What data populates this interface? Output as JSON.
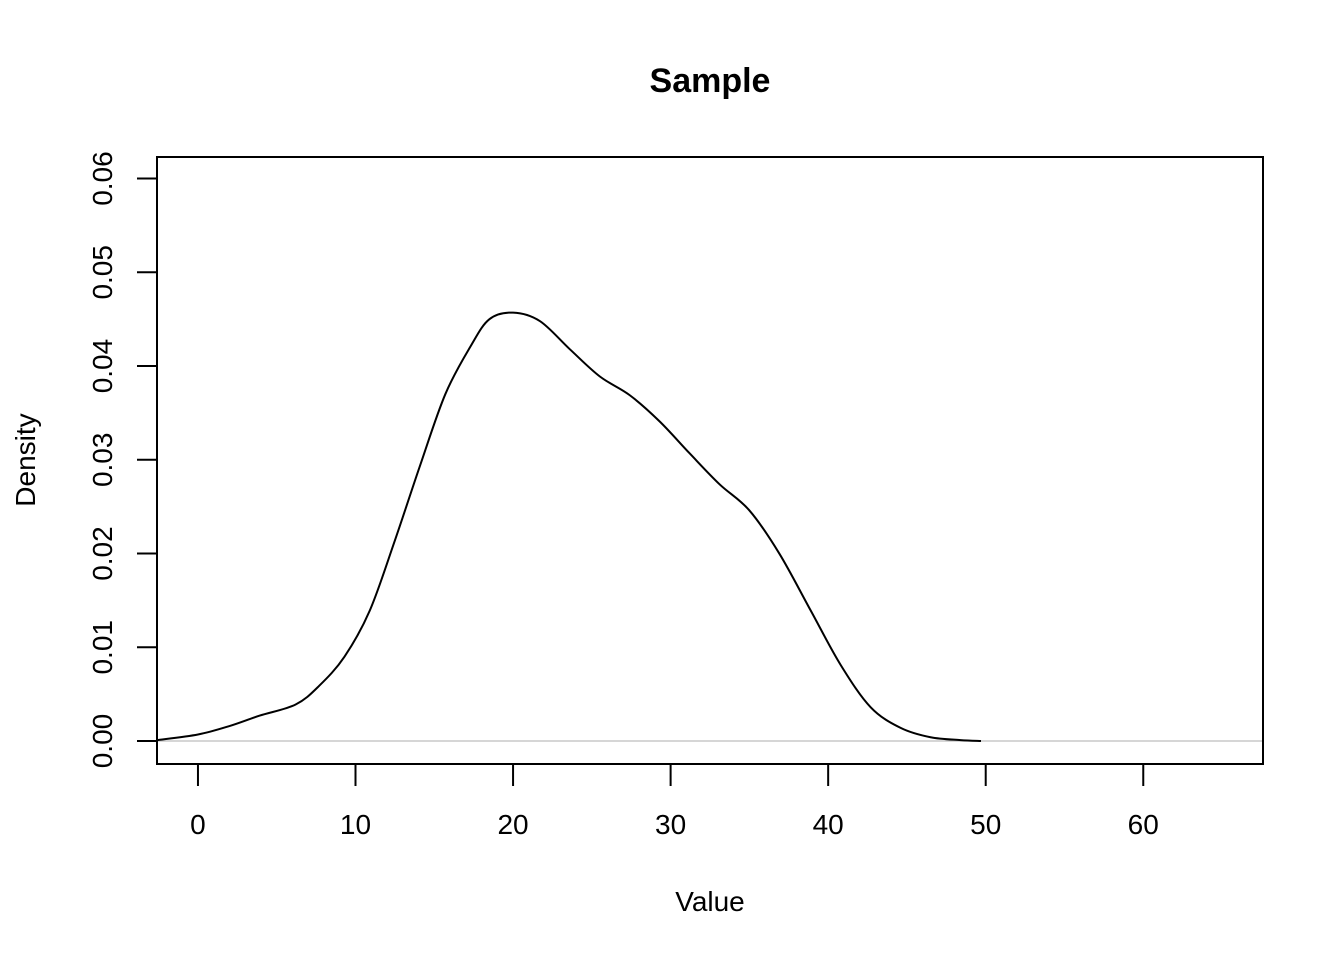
{
  "chart_data": {
    "type": "line",
    "title": "Sample",
    "xlabel": "Value",
    "ylabel": "Density",
    "xlim": [
      -2.6,
      67.6
    ],
    "ylim": [
      -0.00245,
      0.0623
    ],
    "x_ticks": [
      "0",
      "10",
      "20",
      "30",
      "40",
      "50",
      "60"
    ],
    "y_ticks": [
      "0.00",
      "0.01",
      "0.02",
      "0.03",
      "0.04",
      "0.05",
      "0.06"
    ],
    "grid": false,
    "zero_line_color": "#bebebe",
    "line_color": "#000000",
    "series": [
      {
        "x": [
          -2.6,
          0,
          2,
          3.9,
          6.2,
          7.7,
          9.3,
          10.9,
          12.5,
          14.1,
          15.7,
          17.3,
          18.5,
          20,
          21.7,
          23.6,
          25.5,
          27.4,
          29.3,
          31.2,
          33.1,
          35,
          36.9,
          38.9,
          40.8,
          42.7,
          44.6,
          46.5,
          48.4,
          49.7
        ],
        "y": [
          0.0001,
          0.0007,
          0.0016,
          0.0027,
          0.0039,
          0.0059,
          0.009,
          0.0139,
          0.0214,
          0.0294,
          0.037,
          0.0421,
          0.045,
          0.0457,
          0.0448,
          0.0418,
          0.0389,
          0.0369,
          0.0341,
          0.0307,
          0.0274,
          0.0246,
          0.02,
          0.0139,
          0.0081,
          0.0036,
          0.0014,
          0.0004,
          0.0001,
          0
        ]
      }
    ]
  }
}
